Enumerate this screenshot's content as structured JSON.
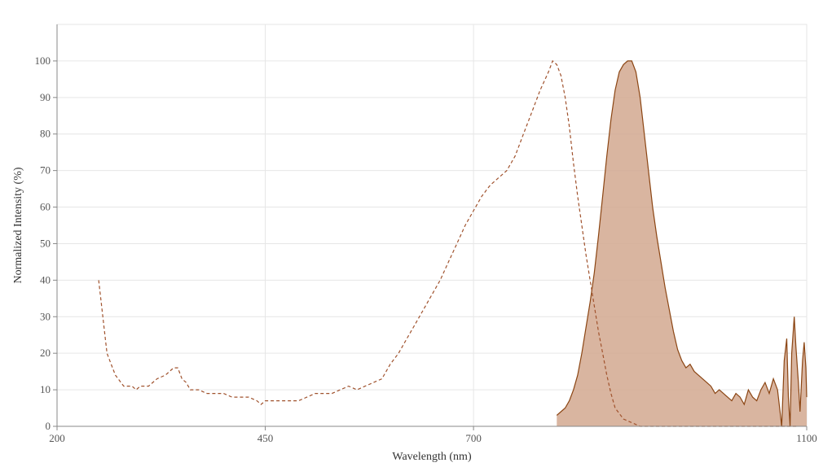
{
  "chart_data": {
    "type": "area",
    "title": "",
    "xlabel": "Wavelength (nm)",
    "ylabel": "Normalized Intensity (%)",
    "xlim": [
      200,
      1100
    ],
    "ylim": [
      0,
      110
    ],
    "x_ticks": [
      200,
      450,
      700,
      1100
    ],
    "y_ticks": [
      0,
      10,
      20,
      30,
      40,
      50,
      60,
      70,
      80,
      90,
      100
    ],
    "grid": true,
    "legend": "none",
    "series": [
      {
        "style": "dashed-line",
        "color": "#a0522d",
        "points": [
          [
            250,
            40
          ],
          [
            255,
            30
          ],
          [
            260,
            20
          ],
          [
            265,
            17
          ],
          [
            270,
            14
          ],
          [
            280,
            11
          ],
          [
            290,
            11
          ],
          [
            295,
            10
          ],
          [
            300,
            11
          ],
          [
            310,
            11
          ],
          [
            320,
            13
          ],
          [
            330,
            14
          ],
          [
            340,
            16
          ],
          [
            345,
            16
          ],
          [
            350,
            13
          ],
          [
            355,
            12
          ],
          [
            360,
            10
          ],
          [
            370,
            10
          ],
          [
            380,
            9
          ],
          [
            390,
            9
          ],
          [
            400,
            9
          ],
          [
            410,
            8
          ],
          [
            420,
            8
          ],
          [
            430,
            8
          ],
          [
            440,
            7
          ],
          [
            445,
            6
          ],
          [
            450,
            7
          ],
          [
            460,
            7
          ],
          [
            470,
            7
          ],
          [
            480,
            7
          ],
          [
            490,
            7
          ],
          [
            500,
            8
          ],
          [
            510,
            9
          ],
          [
            520,
            9
          ],
          [
            530,
            9
          ],
          [
            540,
            10
          ],
          [
            550,
            11
          ],
          [
            560,
            10
          ],
          [
            570,
            11
          ],
          [
            580,
            12
          ],
          [
            590,
            13
          ],
          [
            600,
            17
          ],
          [
            610,
            20
          ],
          [
            620,
            24
          ],
          [
            630,
            28
          ],
          [
            640,
            32
          ],
          [
            650,
            36
          ],
          [
            660,
            40
          ],
          [
            670,
            45
          ],
          [
            680,
            50
          ],
          [
            690,
            55
          ],
          [
            700,
            59
          ],
          [
            710,
            63
          ],
          [
            720,
            66
          ],
          [
            730,
            68
          ],
          [
            740,
            70
          ],
          [
            750,
            74
          ],
          [
            760,
            80
          ],
          [
            770,
            86
          ],
          [
            780,
            92
          ],
          [
            790,
            97
          ],
          [
            795,
            100
          ],
          [
            800,
            99
          ],
          [
            805,
            96
          ],
          [
            810,
            90
          ],
          [
            815,
            82
          ],
          [
            820,
            72
          ],
          [
            825,
            63
          ],
          [
            830,
            55
          ],
          [
            835,
            47
          ],
          [
            840,
            40
          ],
          [
            845,
            33
          ],
          [
            850,
            26
          ],
          [
            855,
            20
          ],
          [
            860,
            14
          ],
          [
            865,
            9
          ],
          [
            870,
            5
          ],
          [
            880,
            2
          ],
          [
            890,
            1
          ],
          [
            900,
            0
          ],
          [
            950,
            0
          ],
          [
            1000,
            0
          ],
          [
            1050,
            0
          ],
          [
            1090,
            0
          ]
        ]
      },
      {
        "style": "filled-area",
        "color": "#8b4513",
        "fill": "#d2a88f",
        "points": [
          [
            800,
            3
          ],
          [
            805,
            4
          ],
          [
            810,
            5
          ],
          [
            815,
            7
          ],
          [
            820,
            10
          ],
          [
            825,
            14
          ],
          [
            830,
            20
          ],
          [
            835,
            27
          ],
          [
            840,
            34
          ],
          [
            845,
            42
          ],
          [
            850,
            52
          ],
          [
            855,
            63
          ],
          [
            860,
            74
          ],
          [
            865,
            84
          ],
          [
            870,
            92
          ],
          [
            875,
            97
          ],
          [
            880,
            99
          ],
          [
            885,
            100
          ],
          [
            890,
            100
          ],
          [
            895,
            97
          ],
          [
            900,
            90
          ],
          [
            905,
            80
          ],
          [
            910,
            70
          ],
          [
            915,
            60
          ],
          [
            920,
            52
          ],
          [
            925,
            45
          ],
          [
            930,
            38
          ],
          [
            935,
            32
          ],
          [
            940,
            26
          ],
          [
            945,
            21
          ],
          [
            950,
            18
          ],
          [
            955,
            16
          ],
          [
            960,
            17
          ],
          [
            965,
            15
          ],
          [
            970,
            14
          ],
          [
            975,
            13
          ],
          [
            980,
            12
          ],
          [
            985,
            11
          ],
          [
            990,
            9
          ],
          [
            995,
            10
          ],
          [
            1000,
            9
          ],
          [
            1005,
            8
          ],
          [
            1010,
            7
          ],
          [
            1015,
            9
          ],
          [
            1020,
            8
          ],
          [
            1025,
            6
          ],
          [
            1030,
            10
          ],
          [
            1035,
            8
          ],
          [
            1040,
            7
          ],
          [
            1045,
            10
          ],
          [
            1050,
            12
          ],
          [
            1055,
            9
          ],
          [
            1060,
            13
          ],
          [
            1065,
            10
          ],
          [
            1068,
            4
          ],
          [
            1070,
            0
          ],
          [
            1073,
            18
          ],
          [
            1076,
            24
          ],
          [
            1078,
            8
          ],
          [
            1080,
            0
          ],
          [
            1082,
            20
          ],
          [
            1085,
            30
          ],
          [
            1087,
            22
          ],
          [
            1090,
            12
          ],
          [
            1092,
            4
          ],
          [
            1095,
            18
          ],
          [
            1097,
            23
          ],
          [
            1099,
            16
          ],
          [
            1100,
            8
          ]
        ]
      }
    ]
  }
}
